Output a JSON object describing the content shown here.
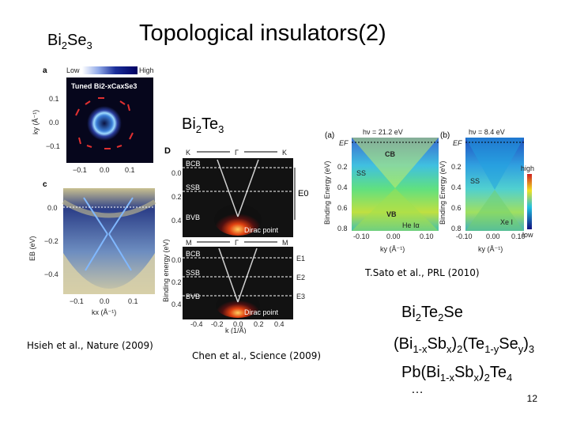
{
  "slide": {
    "title": "Topological insulators(2)",
    "page_number": "12"
  },
  "labels": {
    "bi2se3": {
      "base1": "Bi",
      "sub1": "2",
      "base2": "Se",
      "sub2": "3"
    },
    "bi2te3": {
      "base1": "Bi",
      "sub1": "2",
      "base2": "Te",
      "sub2": "3"
    },
    "bi2te2se": {
      "base1": "Bi",
      "sub1": "2",
      "base2": "Te",
      "sub2": "2",
      "base3": "Se"
    },
    "alloy1": {
      "p1": "(Bi",
      "s1": "1-x",
      "p2": "Sb",
      "s2": "x",
      "p3": ")",
      "s3": "2",
      "p4": "(Te",
      "s4": "1-y",
      "p5": "Se",
      "s5": "y",
      "p6": ")",
      "s6": "3"
    },
    "alloy2": {
      "p1": "Pb(Bi",
      "s1": "1-x",
      "p2": "Sb",
      "s2": "x",
      "p3": ")",
      "s3": "2",
      "p4": "Te",
      "s4": "4"
    },
    "ellipsis": "…"
  },
  "citations": {
    "hsieh": "Hsieh et al., Nature (2009)",
    "chen": "Chen et al., Science (2009)",
    "sato": "T.Sato et al., PRL (2010)"
  },
  "figure_left": {
    "panel_a": "a",
    "panel_c": "c",
    "colorbar_low": "Low",
    "colorbar_high": "High",
    "inset_title": "Tuned Bi2-xCaxSe3",
    "ky_ticks": [
      "0.1",
      "0.0",
      "−0.1"
    ],
    "kx_ticks_top": [
      "−0.1",
      "0.0",
      "0.1"
    ],
    "ky_label": "ky (Å⁻¹)",
    "eb_ticks": [
      "0.0",
      "−0.2",
      "−0.4"
    ],
    "kx_ticks_bottom": [
      "−0.1",
      "0.0",
      "0.1"
    ],
    "eb_label": "EB (eV)",
    "kx_label": "kx (Å⁻¹)"
  },
  "figure_middle": {
    "panel": "D",
    "top_path": [
      "K",
      "Γ",
      "K"
    ],
    "bottom_path": [
      "M",
      "Γ",
      "M"
    ],
    "bands": [
      "BCB",
      "SSB",
      "BVB"
    ],
    "dirac": "Dirac point",
    "e0": "E0",
    "e_levels": [
      "E1",
      "E2",
      "E3"
    ],
    "y_ticks": [
      "0.0",
      "0.2",
      "0.4"
    ],
    "y_label": "Binding energy (eV)",
    "x_ticks": [
      "-0.4",
      "-0.2",
      "0.0",
      "0.2",
      "0.4"
    ],
    "x_label": "k (1/Å)"
  },
  "figure_right": {
    "panel_a": "(a)",
    "panel_b": "(b)",
    "hv_a": "hν = 21.2 eV",
    "hv_b": "hν = 8.4 eV",
    "ef": "EF",
    "cb": "CB",
    "vb": "VB",
    "ss_a": "SS",
    "ss_b": "SS",
    "he_lalpha": "He Iα",
    "xe_label": "Xe I",
    "high": "high",
    "low": "low",
    "y_ticks": [
      "0.2",
      "0.4",
      "0.6",
      "0.8"
    ],
    "y_label": "Binding Energy (eV)",
    "x_ticks_a": [
      "-0.10",
      "0.00",
      "0.10"
    ],
    "x_ticks_b": [
      "-0.10",
      "0.00",
      "0.10"
    ],
    "x_label": "ky (Å⁻¹)"
  }
}
